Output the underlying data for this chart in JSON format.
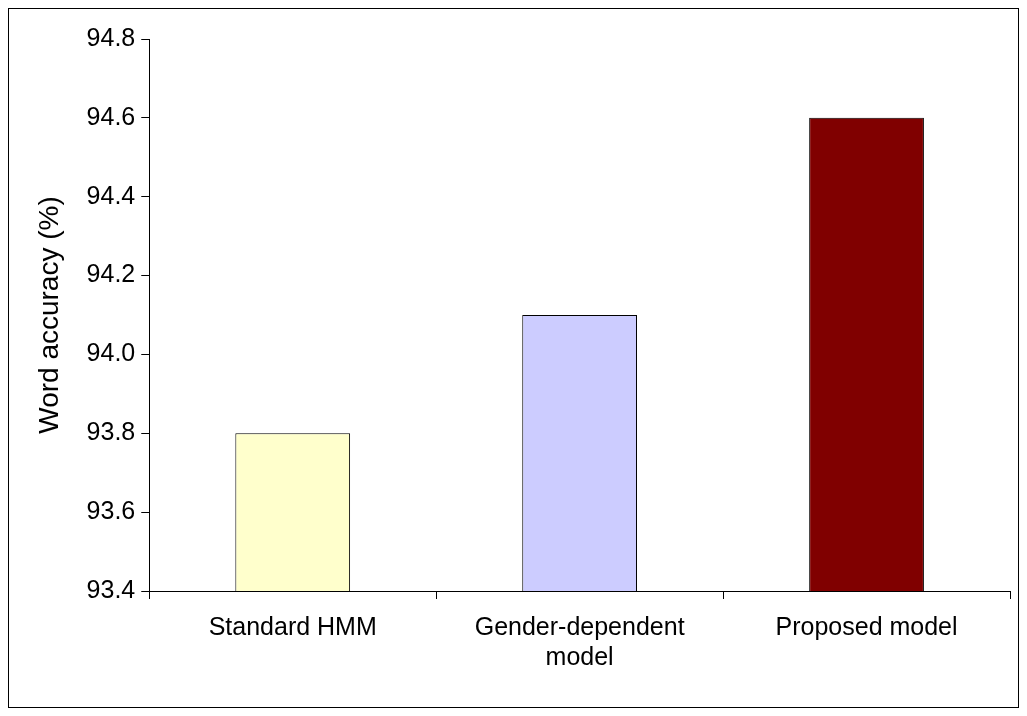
{
  "chart_data": {
    "type": "bar",
    "ylabel": "Word accuracy (%)",
    "categories": [
      "Standard HMM",
      "Gender-dependent model",
      "Proposed model"
    ],
    "values": [
      93.8,
      94.1,
      94.6
    ],
    "colors": [
      "#ffffcc",
      "#ccccff",
      "#800000"
    ],
    "ylim": [
      93.4,
      94.8
    ],
    "yticks": [
      93.4,
      93.6,
      93.8,
      {
        "value": 94,
        "label": "94.0"
      },
      94.2,
      94.4,
      94.6,
      94.8
    ],
    "grid": false,
    "legend": false
  }
}
